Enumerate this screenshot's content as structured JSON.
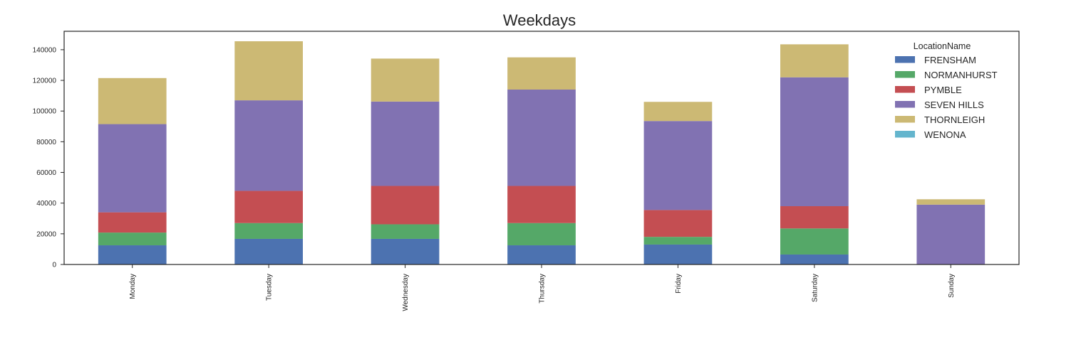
{
  "chart_data": {
    "type": "bar",
    "stacked": true,
    "title": "Weekdays",
    "xlabel": "",
    "ylabel": "",
    "categories": [
      "Monday",
      "Tuesday",
      "Wednesday",
      "Thursday",
      "Friday",
      "Saturday",
      "Sunday"
    ],
    "ylim": [
      0,
      152000
    ],
    "yticks": [
      0,
      20000,
      40000,
      60000,
      80000,
      100000,
      120000,
      140000
    ],
    "grid": false,
    "legend": {
      "title": "LocationName",
      "position": "top-right"
    },
    "series": [
      {
        "name": "FRENSHAM",
        "color": "#4c72b0",
        "values": [
          12500,
          16700,
          16700,
          12500,
          13000,
          6500,
          0
        ]
      },
      {
        "name": "NORMANHURST",
        "color": "#55a868",
        "values": [
          8300,
          10300,
          9500,
          14500,
          5000,
          17000,
          0
        ]
      },
      {
        "name": "PYMBLE",
        "color": "#c44e52",
        "values": [
          13200,
          21000,
          25000,
          24200,
          17500,
          14500,
          0
        ]
      },
      {
        "name": "SEVEN HILLS",
        "color": "#8172b2",
        "values": [
          57500,
          59000,
          55000,
          62800,
          58000,
          84000,
          39000
        ]
      },
      {
        "name": "THORNLEIGH",
        "color": "#ccb974",
        "values": [
          30000,
          38500,
          28000,
          21000,
          12500,
          21500,
          3500
        ]
      },
      {
        "name": "WENONA",
        "color": "#64b5cd",
        "values": [
          0,
          0,
          0,
          0,
          0,
          0,
          0
        ]
      }
    ]
  }
}
